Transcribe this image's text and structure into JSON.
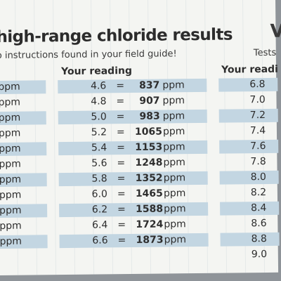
{
  "header": {
    "title": "high-range chloride results",
    "subtitle": "o instructions found in your field guide!",
    "right_big": "V",
    "right_sub": "Tests"
  },
  "columns": {
    "mid_head": "Your reading",
    "right_head": "Your readi"
  },
  "left_unit": "ppm",
  "unit": "ppm",
  "equals": "=",
  "rows": [
    {
      "reading": "4.6",
      "value": "837",
      "right": "6.8"
    },
    {
      "reading": "4.8",
      "value": "907",
      "right": "7.0"
    },
    {
      "reading": "5.0",
      "value": "983",
      "right": "7.2"
    },
    {
      "reading": "5.2",
      "value": "1065",
      "right": "7.4"
    },
    {
      "reading": "5.4",
      "value": "1153",
      "right": "7.6"
    },
    {
      "reading": "5.6",
      "value": "1248",
      "right": "7.8"
    },
    {
      "reading": "5.8",
      "value": "1352",
      "right": "8.0"
    },
    {
      "reading": "6.0",
      "value": "1465",
      "right": "8.2"
    },
    {
      "reading": "6.2",
      "value": "1588",
      "right": "8.4"
    },
    {
      "reading": "6.4",
      "value": "1724",
      "right": "8.6"
    },
    {
      "reading": "6.6",
      "value": "1873",
      "right": "8.8"
    }
  ],
  "extra_right": "9.0",
  "colors": {
    "band": "#c3d6e2",
    "card": "#f4f5f2"
  }
}
